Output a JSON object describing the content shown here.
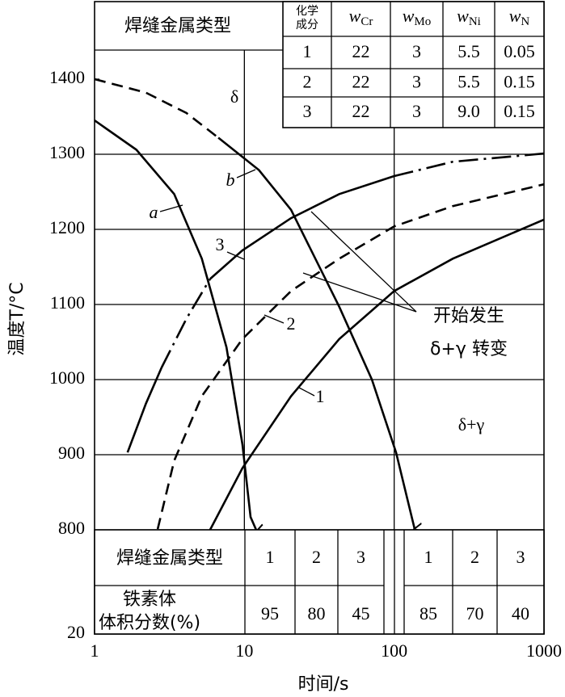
{
  "chart_data": {
    "type": "line",
    "x_label": "时间/s",
    "y_label": "温度T/°C",
    "xscale": "log",
    "xlim": [
      1,
      1000
    ],
    "xticks": [
      1,
      10,
      100,
      1000
    ],
    "ylim": [
      800,
      1500
    ],
    "yticks": [
      800,
      900,
      1000,
      1100,
      1200,
      1300,
      1400
    ],
    "broken_axis_tick": 20,
    "grid": true,
    "color": "#000000",
    "series": [
      {
        "name": "a",
        "arrow": true,
        "pieces": [
          {
            "style": "solid",
            "x": [
              1,
              1.9,
              3.4,
              5.2,
              7.6,
              9.7,
              11.0,
              12.1
            ],
            "y": [
              1345,
              1306,
              1247,
              1161,
              1043,
              914,
              817,
              798
            ]
          }
        ]
      },
      {
        "name": "b",
        "arrow": true,
        "pieces": [
          {
            "style": "dashed",
            "x": [
              1,
              2.2,
              4.1,
              6.7
            ],
            "y": [
              1400,
              1382,
              1355,
              1322
            ]
          },
          {
            "style": "solid",
            "x": [
              6.7,
              12.5,
              20.5,
              43,
              71,
              103,
              137
            ],
            "y": [
              1322,
              1279,
              1226,
              1097,
              1000,
              903,
              801
            ]
          }
        ]
      },
      {
        "name": "3",
        "arrow": false,
        "pieces": [
          {
            "style": "solid",
            "x": [
              1.66,
              2.2,
              2.8
            ],
            "y": [
              903,
              968,
              1016
            ]
          },
          {
            "style": "dashdot",
            "x": [
              2.8,
              4.1,
              5.9
            ],
            "y": [
              1016,
              1081,
              1134
            ]
          },
          {
            "style": "solid",
            "x": [
              5.9,
              9.7,
              20.5,
              43,
              100
            ],
            "y": [
              1134,
              1172,
              1215,
              1247,
              1271
            ]
          },
          {
            "style": "dashdot",
            "x": [
              100,
              246,
              1000
            ],
            "y": [
              1271,
              1290,
              1301
            ]
          }
        ]
      },
      {
        "name": "2",
        "arrow": false,
        "pieces": [
          {
            "style": "dashed",
            "x": [
              2.64,
              3.4,
              5.2,
              9.7,
              20.5,
              43,
              100,
              246,
              1000
            ],
            "y": [
              801,
              892,
              978,
              1054,
              1118,
              1161,
              1204,
              1231,
              1260
            ]
          }
        ]
      },
      {
        "name": "1",
        "arrow": false,
        "pieces": [
          {
            "style": "solid",
            "x": [
              5.9,
              9.7,
              20.5,
              43,
              100,
              246,
              1000
            ],
            "y": [
              800,
              882,
              978,
              1054,
              1118,
              1161,
              1213
            ]
          }
        ]
      }
    ],
    "annotations": {
      "phase_delta": "δ",
      "phase_delta_gamma": "δ+γ",
      "transition_line1": "开始发生",
      "transition_line2": "δ+γ 转变"
    }
  },
  "type_box": "焊缝金属类型",
  "composition_table": {
    "header": [
      [
        "化学",
        "成分"
      ],
      {
        "symbol": "w",
        "sub": "Cr"
      },
      {
        "symbol": "w",
        "sub": "Mo"
      },
      {
        "symbol": "w",
        "sub": "Ni"
      },
      {
        "symbol": "w",
        "sub": "N"
      }
    ],
    "rows": [
      [
        "1",
        "22",
        "3",
        "5.5",
        "0.05"
      ],
      [
        "2",
        "22",
        "3",
        "5.5",
        "0.15"
      ],
      [
        "3",
        "22",
        "3",
        "9.0",
        "0.15"
      ]
    ]
  },
  "ferrite_table": {
    "type_label": "焊缝金属类型",
    "types": [
      "1",
      "2",
      "3",
      "1",
      "2",
      "3"
    ],
    "fraction_label": [
      "铁素体",
      "体积分数(%)"
    ],
    "fractions": [
      95,
      80,
      45,
      85,
      70,
      40
    ]
  }
}
